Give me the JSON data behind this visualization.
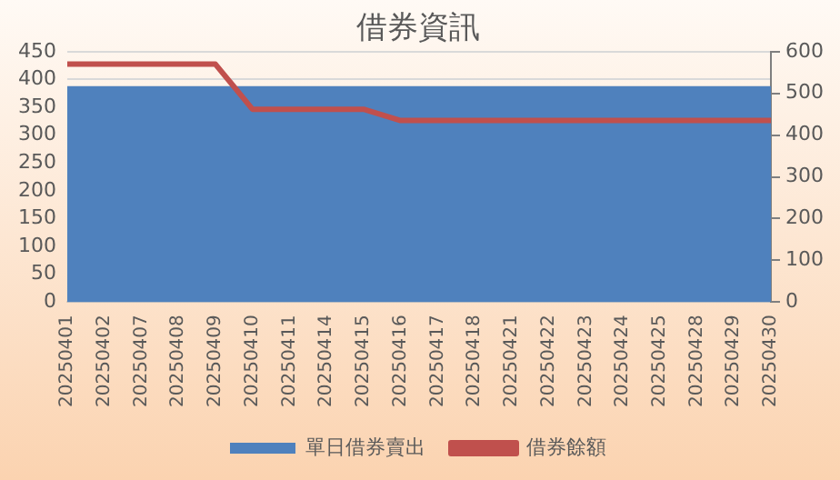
{
  "chart_data": {
    "type": "area",
    "title": "借券資訊",
    "categories": [
      "20250401",
      "20250402",
      "20250407",
      "20250408",
      "20250409",
      "20250410",
      "20250411",
      "20250414",
      "20250415",
      "20250416",
      "20250417",
      "20250418",
      "20250421",
      "20250422",
      "20250423",
      "20250424",
      "20250425",
      "20250428",
      "20250429",
      "20250430"
    ],
    "series": [
      {
        "name": "單日借券賣出",
        "color": "#4f81bd",
        "values": [
          388,
          388,
          388,
          388,
          388,
          388,
          388,
          388,
          388,
          388,
          388,
          388,
          388,
          388,
          388,
          388,
          388,
          388,
          388,
          388
        ]
      },
      {
        "name": "借券餘額",
        "type": "line",
        "axis": "y2",
        "color": "#c0504d",
        "values": [
          570,
          570,
          570,
          570,
          570,
          462,
          462,
          462,
          462,
          435,
          435,
          435,
          435,
          435,
          435,
          435,
          435,
          435,
          435,
          435
        ]
      }
    ],
    "ylim": [
      0,
      450
    ],
    "yticks": [
      0,
      50,
      100,
      150,
      200,
      250,
      300,
      350,
      400,
      450
    ],
    "y2lim": [
      0,
      600
    ],
    "y2ticks": [
      0,
      100,
      200,
      300,
      400,
      500,
      600
    ],
    "grid": "y",
    "legend": "bottom",
    "marker": "none",
    "line_style": "solid"
  }
}
